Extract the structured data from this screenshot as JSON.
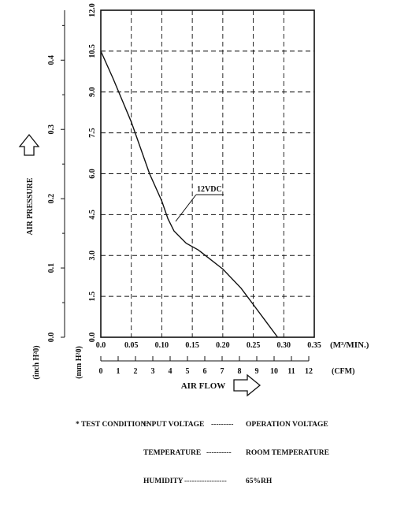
{
  "chart_data": {
    "type": "line",
    "series": [
      {
        "name": "12VDC",
        "x": [
          0.0,
          0.02,
          0.05,
          0.08,
          0.1,
          0.11,
          0.12,
          0.14,
          0.16,
          0.2,
          0.23,
          0.25,
          0.27,
          0.29
        ],
        "y": [
          10.5,
          9.5,
          7.9,
          6.0,
          5.0,
          4.35,
          3.9,
          3.45,
          3.2,
          2.5,
          1.8,
          1.2,
          0.6,
          0.0
        ]
      }
    ],
    "series_label": "12VDC",
    "x_axis": {
      "label": "AIR FLOW",
      "unit_primary": "(M³/MIN.)",
      "range": [
        0.0,
        0.35
      ],
      "ticks": [
        "0.0",
        "0.05",
        "0.10",
        "0.15",
        "0.20",
        "0.25",
        "0.30",
        "0.35"
      ]
    },
    "x_axis_secondary": {
      "unit": "(CFM)",
      "range": [
        0,
        12
      ],
      "ticks": [
        "0",
        "1",
        "2",
        "3",
        "4",
        "5",
        "6",
        "7",
        "8",
        "9",
        "10",
        "11",
        "12"
      ]
    },
    "y_axis": {
      "label": "AIR PRESSURE",
      "unit_primary": "(mm H²0)",
      "range": [
        0.0,
        12.0
      ],
      "ticks": [
        "0.0",
        "1.5",
        "3.0",
        "4.5",
        "6.0",
        "7.5",
        "9.0",
        "10.5",
        "12.0"
      ]
    },
    "y_axis_secondary": {
      "unit": "(inch H²0)",
      "range": [
        0.0,
        0.472
      ],
      "ticks": [
        "0.0",
        "0.1",
        "0.2",
        "0.3",
        "0.4"
      ]
    },
    "grid": true
  },
  "test_condition": {
    "prefix": "* TEST CONDITION:",
    "rows": [
      {
        "key": "INPUT VOLTAGE",
        "dashes": "---------",
        "value": "OPERATION VOLTAGE"
      },
      {
        "key": "TEMPERATURE",
        "dashes": "----------",
        "value": "ROOM TEMPERATURE"
      },
      {
        "key": "HUMIDITY",
        "dashes": "-----------------",
        "value": "65%RH"
      }
    ]
  }
}
